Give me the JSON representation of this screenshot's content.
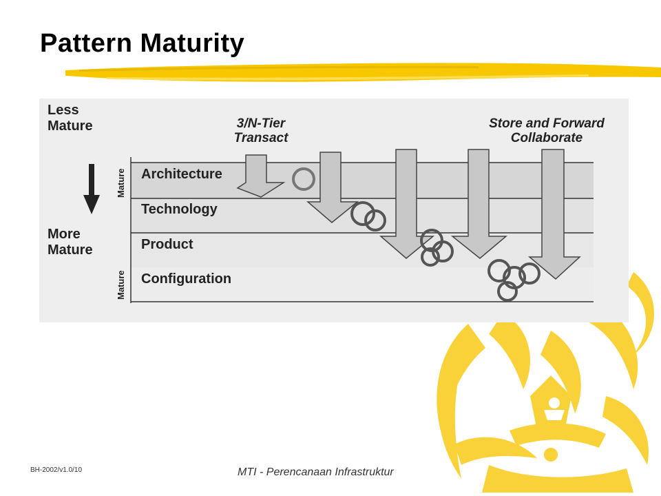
{
  "slide": {
    "title": "Pattern Maturity",
    "footer_left": "BH-2002/v1.0/10",
    "footer_center": "MTI - Perencanaan Infrastruktur"
  },
  "diagram": {
    "left_top_label": "Less\nMature",
    "left_bottom_label": "More\nMature",
    "vertical_label": "Mature",
    "bands": [
      "Architecture",
      "Technology",
      "Product",
      "Configuration"
    ],
    "callout_left": "3/N-Tier\nTransact",
    "callout_right": "Store and Forward\nCollaborate"
  },
  "colors": {
    "accent_yellow": "#f7c800",
    "ornament_yellow": "#f9d23a",
    "figure_bg": "#eeeeee",
    "arrow_fill": "#cccccc"
  }
}
